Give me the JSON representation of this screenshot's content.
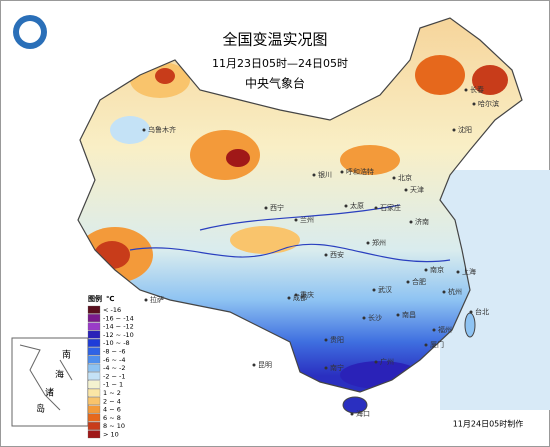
{
  "header": {
    "title": "全国变温实况图",
    "date_range": "11月23日05时—24日05时",
    "agency": "中央气象台"
  },
  "legend": {
    "title": "图例",
    "unit": "℃",
    "items": [
      {
        "label": "< -16",
        "color": "#5a0f1e"
      },
      {
        "label": "-16 ~ -14",
        "color": "#7a1a8c"
      },
      {
        "label": "-14 ~ -12",
        "color": "#9a3cc8"
      },
      {
        "label": "-12 ~ -10",
        "color": "#2a22b8"
      },
      {
        "label": "-10 ~ -8",
        "color": "#1e3cd8"
      },
      {
        "label": "-8 ~ -6",
        "color": "#2f63e6"
      },
      {
        "label": "-6 ~ -4",
        "color": "#4f8fee"
      },
      {
        "label": "-4 ~ -2",
        "color": "#8ec3f2"
      },
      {
        "label": "-2 ~ -1",
        "color": "#c4e2f6"
      },
      {
        "label": "-1 ~ 1",
        "color": "#f4f2d0"
      },
      {
        "label": "1 ~ 2",
        "color": "#fbe6a6"
      },
      {
        "label": "2 ~ 4",
        "color": "#f9c46c"
      },
      {
        "label": "4 ~ 6",
        "color": "#f39a3a"
      },
      {
        "label": "6 ~ 8",
        "color": "#e6681c"
      },
      {
        "label": "8 ~ 10",
        "color": "#c83c1a"
      },
      {
        "label": "> 10",
        "color": "#a01818"
      }
    ]
  },
  "cities": [
    "哈尔滨",
    "长春",
    "沈阳",
    "乌鲁木齐",
    "呼和浩特",
    "北京",
    "天津",
    "石家庄",
    "太原",
    "济南",
    "银川",
    "兰州",
    "西宁",
    "西安",
    "郑州",
    "拉萨",
    "成都",
    "重庆",
    "武汉",
    "合肥",
    "南京",
    "上海",
    "杭州",
    "长沙",
    "南昌",
    "贵阳",
    "昆明",
    "福州",
    "台北",
    "南宁",
    "广州",
    "厦门",
    "海口"
  ],
  "inset_labels": [
    "南",
    "海",
    "诸",
    "岛"
  ],
  "footer": "11月24日05时制作"
}
